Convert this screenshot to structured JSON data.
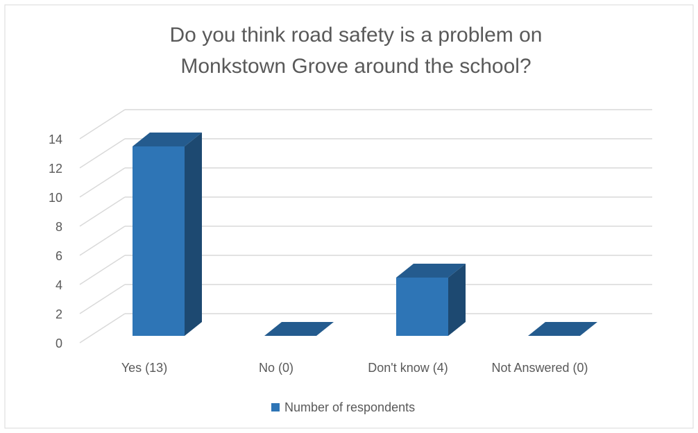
{
  "chart_data": {
    "type": "bar3d",
    "title": "Do you think road safety is a problem on Monkstown Grove around the school?",
    "categories": [
      "Yes (13)",
      "No (0)",
      "Don't know (4)",
      "Not Answered (0)"
    ],
    "series": [
      {
        "name": "Number of respondents",
        "color": "#2e75b6",
        "values": [
          13,
          0,
          4,
          0
        ]
      }
    ],
    "ylim": [
      0,
      14
    ],
    "yticks": [
      0,
      2,
      4,
      6,
      8,
      10,
      12,
      14
    ],
    "grid": true,
    "legend": "bottom"
  }
}
